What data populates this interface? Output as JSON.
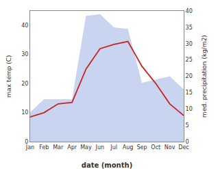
{
  "chart_data": {
    "type": "line",
    "categories": [
      "Jan",
      "Feb",
      "Mar",
      "Apr",
      "May",
      "Jun",
      "Jul",
      "Aug",
      "Sep",
      "Oct",
      "Nov",
      "Dec"
    ],
    "x_label": "date (month)",
    "y_label": "max temp (C)",
    "y2_label": "med. precipitation (kg/m2)",
    "ylim": [
      0,
      45
    ],
    "yticks": [
      0,
      10,
      20,
      30,
      40
    ],
    "y2lim": [
      0,
      40
    ],
    "y2ticks": [
      0,
      5,
      10,
      15,
      20,
      25,
      30,
      35,
      40
    ],
    "grid": false,
    "series": [
      {
        "type": "area",
        "axis": "y2",
        "color": "#c0ccee",
        "values": [
          9.0,
          13.0,
          13.0,
          13.0,
          38.5,
          39.0,
          35.0,
          34.5,
          18.0,
          19.0,
          20.0,
          16.0
        ]
      },
      {
        "type": "line",
        "color": "#cc2222",
        "values": [
          8.5,
          10.0,
          13.0,
          13.5,
          25.0,
          32.0,
          33.5,
          34.5,
          26.0,
          20.0,
          13.0,
          9.0
        ]
      }
    ]
  }
}
